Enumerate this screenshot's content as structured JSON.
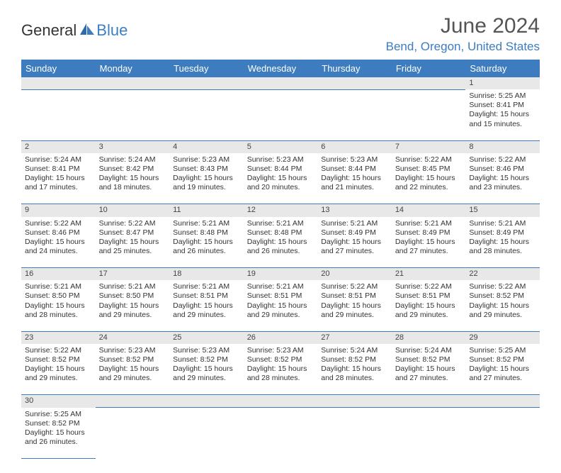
{
  "logo": {
    "text1": "General",
    "text2": "Blue"
  },
  "title": "June 2024",
  "location": "Bend, Oregon, United States",
  "colors": {
    "header_bg": "#3d7cbf",
    "header_text": "#ffffff",
    "daynum_bg": "#e8e8e8",
    "border": "#3d7cbf",
    "title_color": "#555555",
    "location_color": "#3d7cbf"
  },
  "weekdays": [
    "Sunday",
    "Monday",
    "Tuesday",
    "Wednesday",
    "Thursday",
    "Friday",
    "Saturday"
  ],
  "weeks": [
    [
      null,
      null,
      null,
      null,
      null,
      null,
      {
        "n": "1",
        "sr": "Sunrise: 5:25 AM",
        "ss": "Sunset: 8:41 PM",
        "d1": "Daylight: 15 hours",
        "d2": "and 15 minutes."
      }
    ],
    [
      {
        "n": "2",
        "sr": "Sunrise: 5:24 AM",
        "ss": "Sunset: 8:41 PM",
        "d1": "Daylight: 15 hours",
        "d2": "and 17 minutes."
      },
      {
        "n": "3",
        "sr": "Sunrise: 5:24 AM",
        "ss": "Sunset: 8:42 PM",
        "d1": "Daylight: 15 hours",
        "d2": "and 18 minutes."
      },
      {
        "n": "4",
        "sr": "Sunrise: 5:23 AM",
        "ss": "Sunset: 8:43 PM",
        "d1": "Daylight: 15 hours",
        "d2": "and 19 minutes."
      },
      {
        "n": "5",
        "sr": "Sunrise: 5:23 AM",
        "ss": "Sunset: 8:44 PM",
        "d1": "Daylight: 15 hours",
        "d2": "and 20 minutes."
      },
      {
        "n": "6",
        "sr": "Sunrise: 5:23 AM",
        "ss": "Sunset: 8:44 PM",
        "d1": "Daylight: 15 hours",
        "d2": "and 21 minutes."
      },
      {
        "n": "7",
        "sr": "Sunrise: 5:22 AM",
        "ss": "Sunset: 8:45 PM",
        "d1": "Daylight: 15 hours",
        "d2": "and 22 minutes."
      },
      {
        "n": "8",
        "sr": "Sunrise: 5:22 AM",
        "ss": "Sunset: 8:46 PM",
        "d1": "Daylight: 15 hours",
        "d2": "and 23 minutes."
      }
    ],
    [
      {
        "n": "9",
        "sr": "Sunrise: 5:22 AM",
        "ss": "Sunset: 8:46 PM",
        "d1": "Daylight: 15 hours",
        "d2": "and 24 minutes."
      },
      {
        "n": "10",
        "sr": "Sunrise: 5:22 AM",
        "ss": "Sunset: 8:47 PM",
        "d1": "Daylight: 15 hours",
        "d2": "and 25 minutes."
      },
      {
        "n": "11",
        "sr": "Sunrise: 5:21 AM",
        "ss": "Sunset: 8:48 PM",
        "d1": "Daylight: 15 hours",
        "d2": "and 26 minutes."
      },
      {
        "n": "12",
        "sr": "Sunrise: 5:21 AM",
        "ss": "Sunset: 8:48 PM",
        "d1": "Daylight: 15 hours",
        "d2": "and 26 minutes."
      },
      {
        "n": "13",
        "sr": "Sunrise: 5:21 AM",
        "ss": "Sunset: 8:49 PM",
        "d1": "Daylight: 15 hours",
        "d2": "and 27 minutes."
      },
      {
        "n": "14",
        "sr": "Sunrise: 5:21 AM",
        "ss": "Sunset: 8:49 PM",
        "d1": "Daylight: 15 hours",
        "d2": "and 27 minutes."
      },
      {
        "n": "15",
        "sr": "Sunrise: 5:21 AM",
        "ss": "Sunset: 8:49 PM",
        "d1": "Daylight: 15 hours",
        "d2": "and 28 minutes."
      }
    ],
    [
      {
        "n": "16",
        "sr": "Sunrise: 5:21 AM",
        "ss": "Sunset: 8:50 PM",
        "d1": "Daylight: 15 hours",
        "d2": "and 28 minutes."
      },
      {
        "n": "17",
        "sr": "Sunrise: 5:21 AM",
        "ss": "Sunset: 8:50 PM",
        "d1": "Daylight: 15 hours",
        "d2": "and 29 minutes."
      },
      {
        "n": "18",
        "sr": "Sunrise: 5:21 AM",
        "ss": "Sunset: 8:51 PM",
        "d1": "Daylight: 15 hours",
        "d2": "and 29 minutes."
      },
      {
        "n": "19",
        "sr": "Sunrise: 5:21 AM",
        "ss": "Sunset: 8:51 PM",
        "d1": "Daylight: 15 hours",
        "d2": "and 29 minutes."
      },
      {
        "n": "20",
        "sr": "Sunrise: 5:22 AM",
        "ss": "Sunset: 8:51 PM",
        "d1": "Daylight: 15 hours",
        "d2": "and 29 minutes."
      },
      {
        "n": "21",
        "sr": "Sunrise: 5:22 AM",
        "ss": "Sunset: 8:51 PM",
        "d1": "Daylight: 15 hours",
        "d2": "and 29 minutes."
      },
      {
        "n": "22",
        "sr": "Sunrise: 5:22 AM",
        "ss": "Sunset: 8:52 PM",
        "d1": "Daylight: 15 hours",
        "d2": "and 29 minutes."
      }
    ],
    [
      {
        "n": "23",
        "sr": "Sunrise: 5:22 AM",
        "ss": "Sunset: 8:52 PM",
        "d1": "Daylight: 15 hours",
        "d2": "and 29 minutes."
      },
      {
        "n": "24",
        "sr": "Sunrise: 5:23 AM",
        "ss": "Sunset: 8:52 PM",
        "d1": "Daylight: 15 hours",
        "d2": "and 29 minutes."
      },
      {
        "n": "25",
        "sr": "Sunrise: 5:23 AM",
        "ss": "Sunset: 8:52 PM",
        "d1": "Daylight: 15 hours",
        "d2": "and 29 minutes."
      },
      {
        "n": "26",
        "sr": "Sunrise: 5:23 AM",
        "ss": "Sunset: 8:52 PM",
        "d1": "Daylight: 15 hours",
        "d2": "and 28 minutes."
      },
      {
        "n": "27",
        "sr": "Sunrise: 5:24 AM",
        "ss": "Sunset: 8:52 PM",
        "d1": "Daylight: 15 hours",
        "d2": "and 28 minutes."
      },
      {
        "n": "28",
        "sr": "Sunrise: 5:24 AM",
        "ss": "Sunset: 8:52 PM",
        "d1": "Daylight: 15 hours",
        "d2": "and 27 minutes."
      },
      {
        "n": "29",
        "sr": "Sunrise: 5:25 AM",
        "ss": "Sunset: 8:52 PM",
        "d1": "Daylight: 15 hours",
        "d2": "and 27 minutes."
      }
    ],
    [
      {
        "n": "30",
        "sr": "Sunrise: 5:25 AM",
        "ss": "Sunset: 8:52 PM",
        "d1": "Daylight: 15 hours",
        "d2": "and 26 minutes."
      },
      null,
      null,
      null,
      null,
      null,
      null
    ]
  ]
}
